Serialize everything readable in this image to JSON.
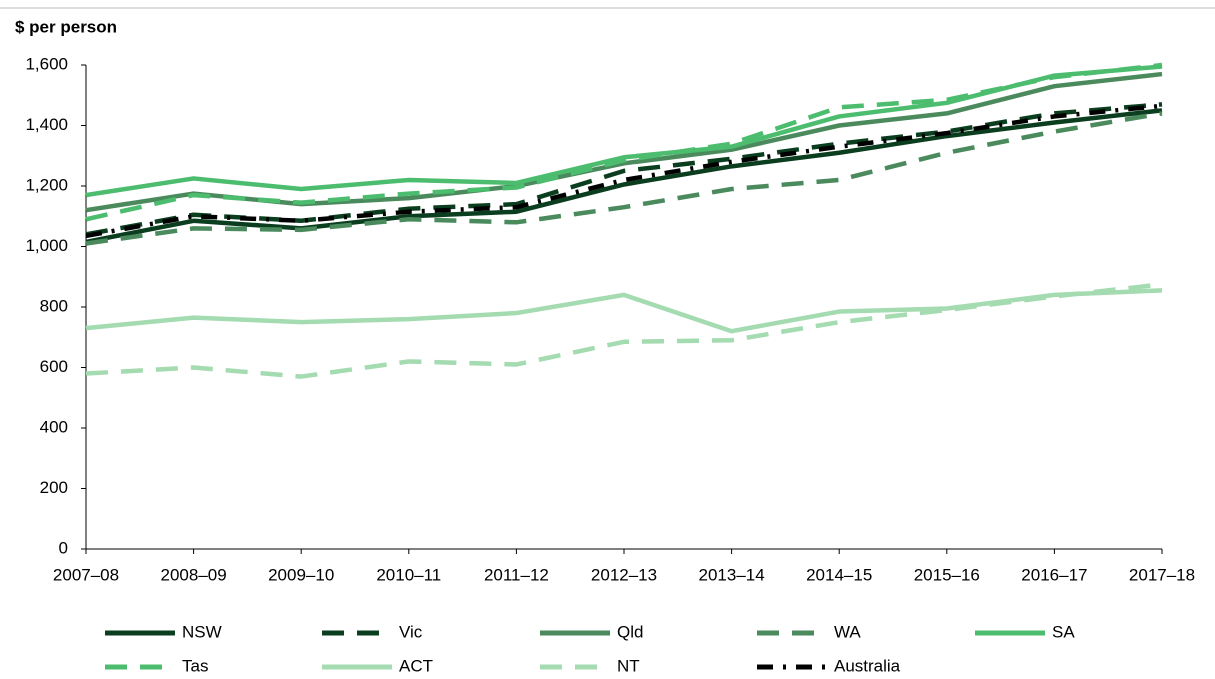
{
  "chart_data": {
    "type": "line",
    "y_label": "$ per person",
    "categories": [
      "2007–08",
      "2008–09",
      "2009–10",
      "2010–11",
      "2011–12",
      "2012–13",
      "2013–14",
      "2014–15",
      "2015–16",
      "2016–17",
      "2017–18"
    ],
    "ylim": [
      0,
      1600
    ],
    "yticks": [
      0,
      200,
      400,
      600,
      800,
      {
        "value": 1000,
        "label": "1,000"
      },
      {
        "value": 1200,
        "label": "1,200"
      },
      {
        "value": 1400,
        "label": "1,400"
      },
      {
        "value": 1600,
        "label": "1,600"
      }
    ],
    "series": [
      {
        "name": "NSW",
        "color": "#0b3d1f",
        "dash": "solid",
        "values": [
          1015,
          1085,
          1060,
          1100,
          1115,
          1205,
          1265,
          1310,
          1365,
          1410,
          1450
        ]
      },
      {
        "name": "Vic",
        "color": "#0b3d1f",
        "dash": "dashed",
        "values": [
          1040,
          1105,
          1085,
          1125,
          1140,
          1250,
          1290,
          1340,
          1380,
          1440,
          1470
        ]
      },
      {
        "name": "Qld",
        "color": "#4a8a5c",
        "dash": "solid",
        "values": [
          1120,
          1175,
          1140,
          1160,
          1200,
          1275,
          1320,
          1400,
          1440,
          1530,
          1570
        ]
      },
      {
        "name": "WA",
        "color": "#4a8a5c",
        "dash": "dashed",
        "values": [
          1010,
          1060,
          1055,
          1090,
          1080,
          1130,
          1190,
          1220,
          1310,
          1380,
          1440
        ]
      },
      {
        "name": "SA",
        "color": "#4cbd6e",
        "dash": "solid",
        "values": [
          1170,
          1225,
          1190,
          1220,
          1210,
          1295,
          1330,
          1430,
          1475,
          1565,
          1595
        ]
      },
      {
        "name": "Tas",
        "color": "#4cbd6e",
        "dash": "dashed",
        "values": [
          1090,
          1170,
          1145,
          1175,
          1195,
          1285,
          1340,
          1460,
          1485,
          1560,
          1600
        ]
      },
      {
        "name": "ACT",
        "color": "#a4dbb0",
        "dash": "solid",
        "values": [
          730,
          765,
          750,
          760,
          780,
          840,
          720,
          785,
          795,
          840,
          855
        ]
      },
      {
        "name": "NT",
        "color": "#a4dbb0",
        "dash": "dashed",
        "values": [
          580,
          600,
          570,
          620,
          610,
          685,
          690,
          750,
          790,
          835,
          875
        ]
      },
      {
        "name": "Australia",
        "color": "#000000",
        "dash": "dashdot",
        "values": [
          1035,
          1100,
          1085,
          1115,
          1130,
          1220,
          1280,
          1330,
          1375,
          1430,
          1465
        ]
      }
    ]
  }
}
